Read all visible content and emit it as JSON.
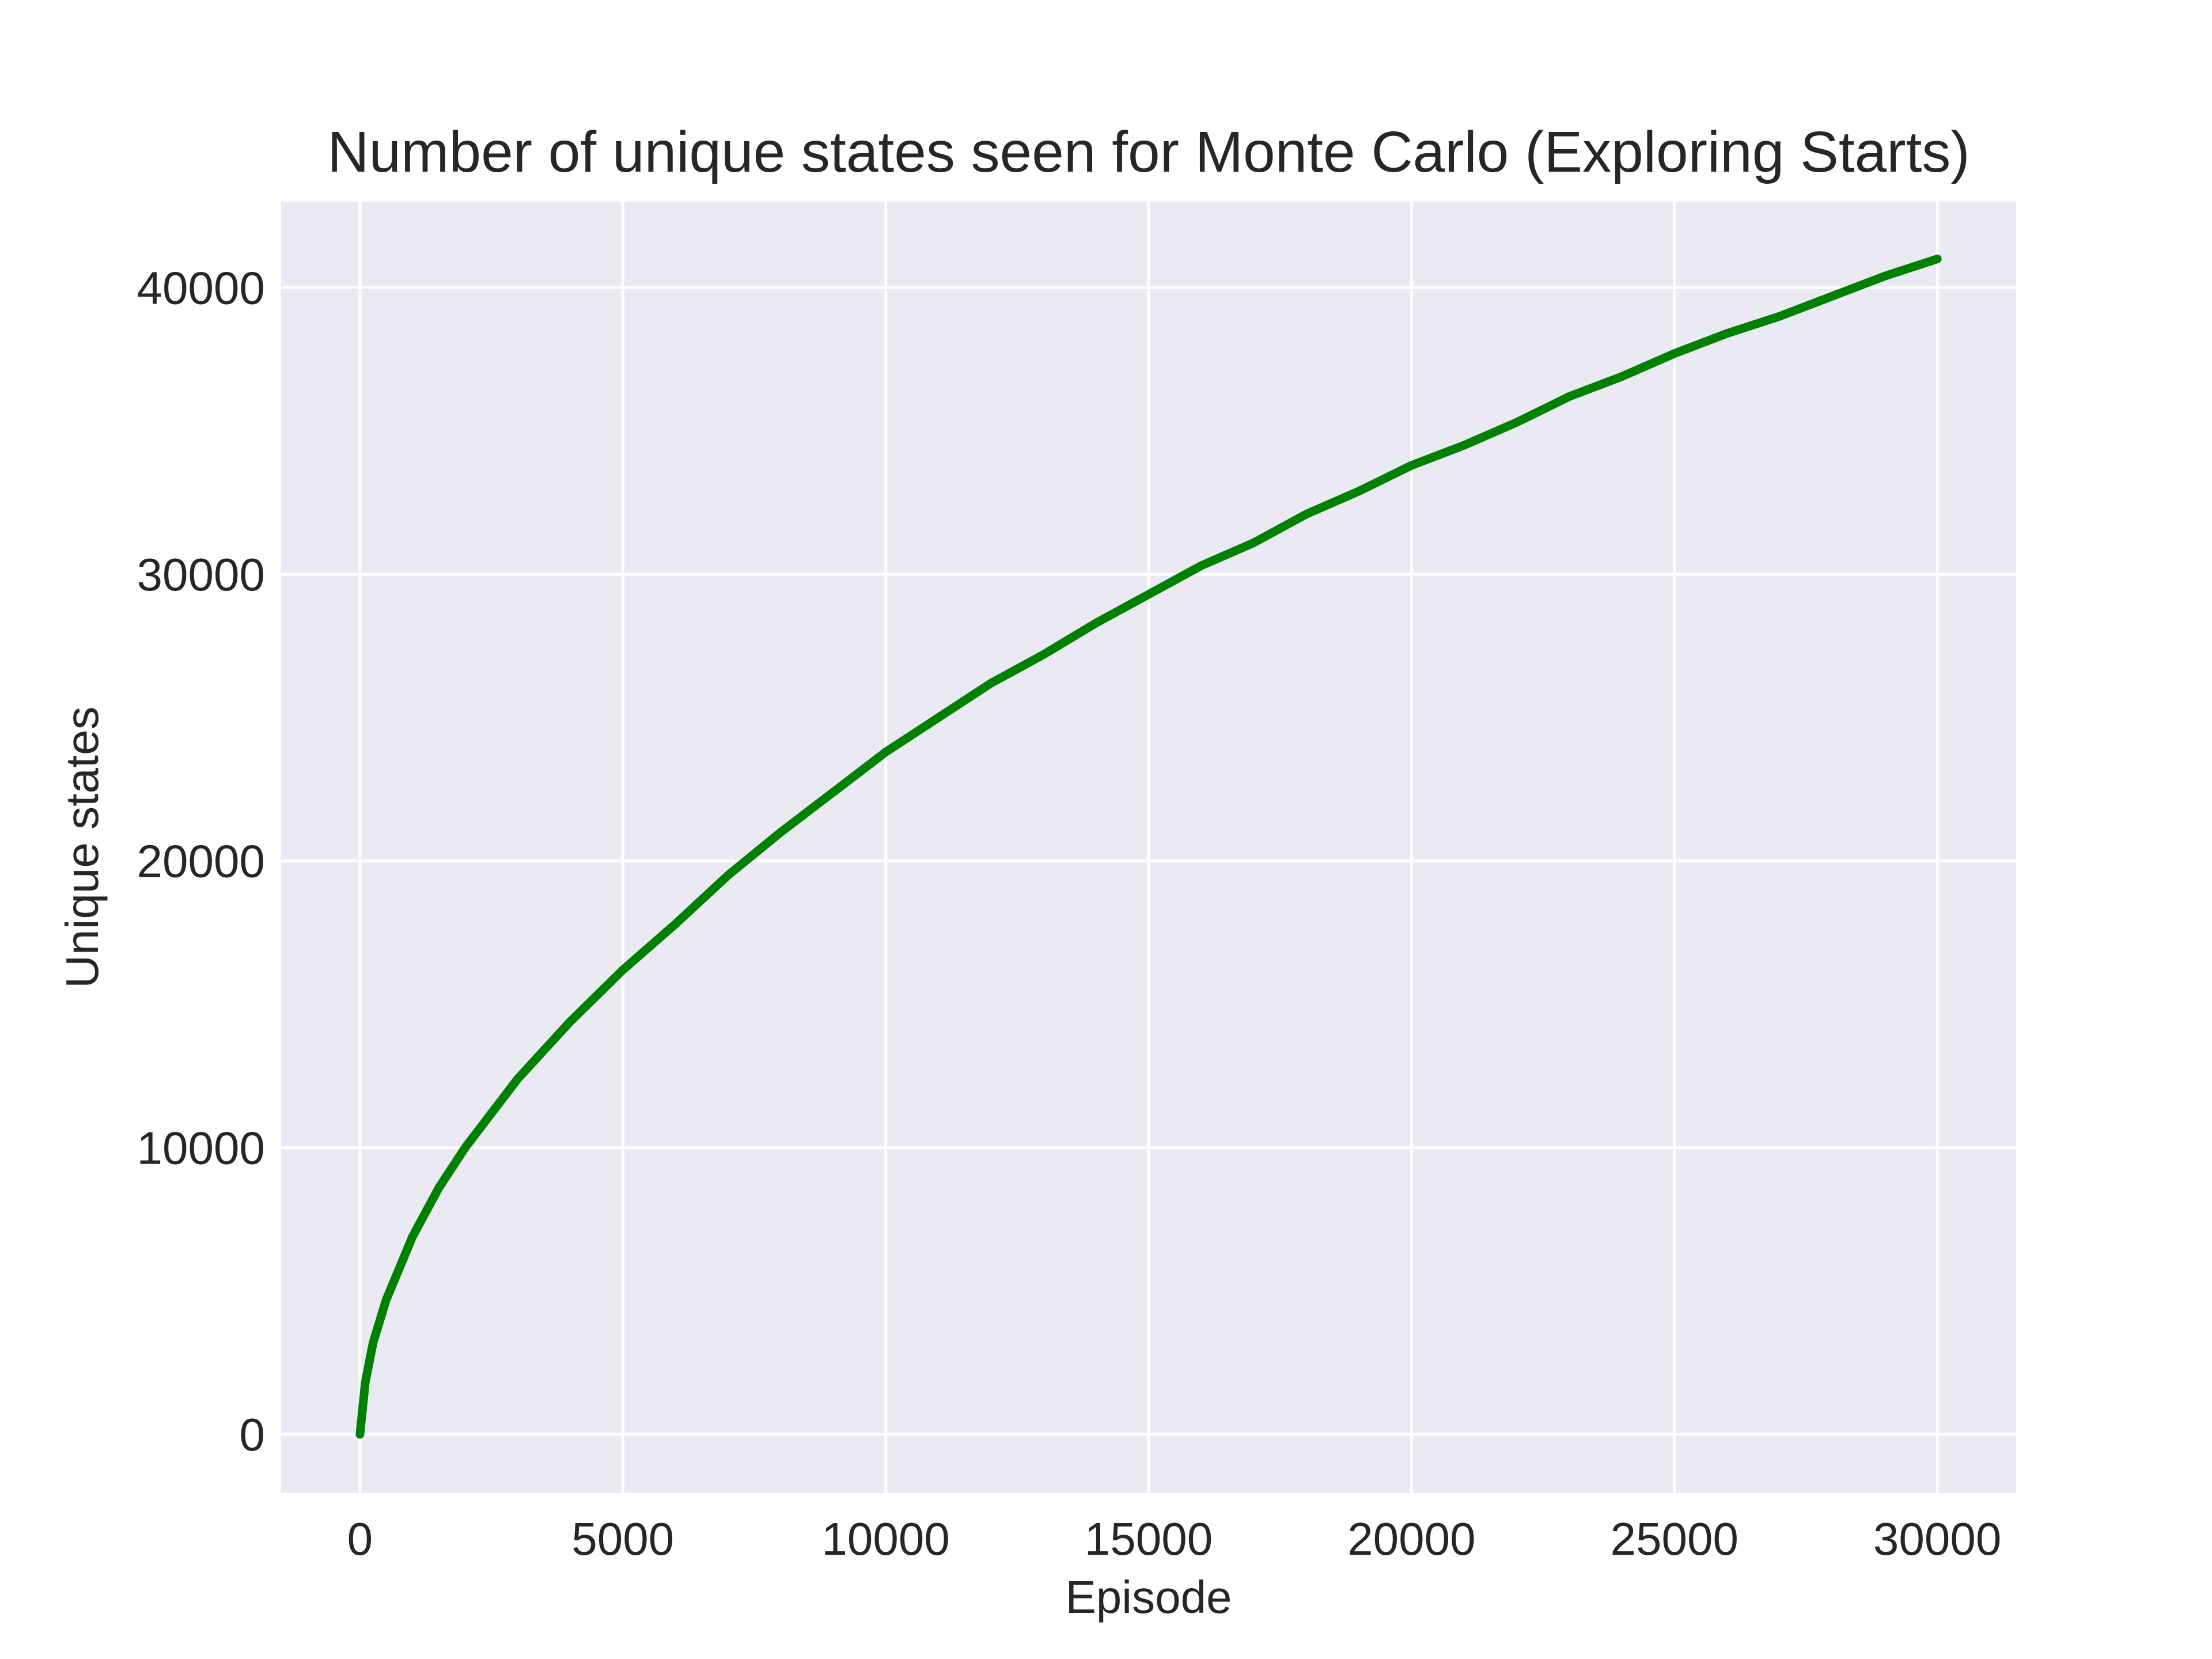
{
  "chart_data": {
    "type": "line",
    "title": "Number of unique states seen for Monte Carlo (Exploring Starts)",
    "xlabel": "Episode",
    "ylabel": "Unique states",
    "xlim": [
      -1500,
      31500
    ],
    "ylim": [
      -2050,
      43000
    ],
    "x_ticks": [
      0,
      5000,
      10000,
      15000,
      20000,
      25000,
      30000
    ],
    "x_tick_labels": [
      "0",
      "5000",
      "10000",
      "15000",
      "20000",
      "25000",
      "30000"
    ],
    "y_ticks": [
      0,
      10000,
      20000,
      30000,
      40000
    ],
    "y_tick_labels": [
      "0",
      "10000",
      "20000",
      "30000",
      "40000"
    ],
    "grid": true,
    "background": "#eaeaf2",
    "series": [
      {
        "color": "#008000",
        "x": [
          0,
          100,
          250,
          500,
          750,
          1000,
          1500,
          2000,
          2500,
          3000,
          4000,
          5000,
          6000,
          7000,
          8000,
          9000,
          10000,
          11000,
          12000,
          13000,
          14000,
          15000,
          16000,
          17000,
          18000,
          19000,
          20000,
          21000,
          22000,
          23000,
          24000,
          25000,
          26000,
          27000,
          28000,
          29000,
          30000
        ],
        "y": [
          0,
          1800,
          3200,
          4700,
          5800,
          6900,
          8600,
          10000,
          11200,
          12400,
          14400,
          16200,
          17800,
          19500,
          21000,
          22400,
          23800,
          25000,
          26200,
          27200,
          28300,
          29300,
          30300,
          31100,
          32100,
          32900,
          33800,
          34500,
          35300,
          36200,
          36900,
          37700,
          38400,
          39000,
          39700,
          40400,
          41000
        ]
      }
    ]
  }
}
